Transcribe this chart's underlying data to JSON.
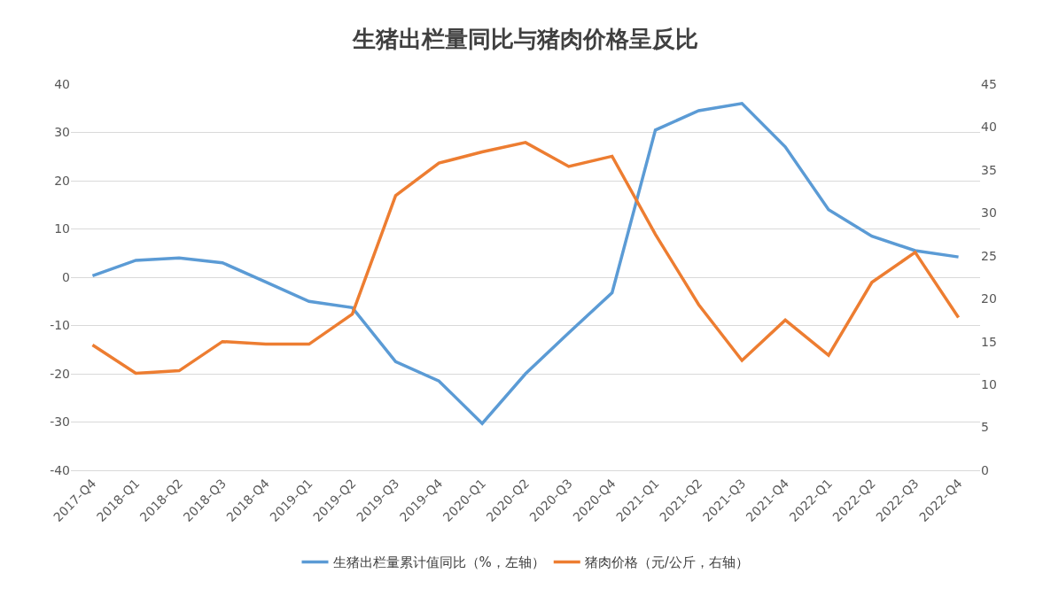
{
  "chart_data": {
    "type": "line",
    "title": "生猪出栏量同比与猪肉价格呈反比",
    "categories": [
      "2017-Q4",
      "2018-Q1",
      "2018-Q2",
      "2018-Q3",
      "2018-Q4",
      "2019-Q1",
      "2019-Q2",
      "2019-Q3",
      "2019-Q4",
      "2020-Q1",
      "2020-Q2",
      "2020-Q3",
      "2020-Q4",
      "2021-Q1",
      "2021-Q2",
      "2021-Q3",
      "2021-Q4",
      "2022-Q1",
      "2022-Q2",
      "2022-Q3",
      "2022-Q4"
    ],
    "series": [
      {
        "name": "生猪出栏量累计值同比（%，左轴）",
        "color": "#5b9bd5",
        "values": [
          0.3,
          3.5,
          4,
          3,
          -1,
          -5,
          -6.3,
          -17.5,
          -21.5,
          -30.3,
          -20,
          -11.5,
          -3.2,
          30.5,
          34.5,
          36,
          27,
          14,
          8.5,
          5.5,
          4.2
        ]
      },
      {
        "name": "猪肉价格（元/公斤，右轴）",
        "color": "#ed7d31",
        "axis": "y2",
        "values": [
          14.6,
          11.3,
          11.6,
          15,
          14.7,
          14.7,
          18.2,
          32,
          35.8,
          37.1,
          38.2,
          35.4,
          36.6,
          27.5,
          19.3,
          12.8,
          17.5,
          13.4,
          21.9,
          25.4,
          17.8
        ]
      }
    ],
    "ylim": [
      -40,
      40
    ],
    "yticks": [
      -40,
      -30,
      -20,
      -10,
      0,
      10,
      20,
      30,
      40
    ],
    "y2lim": [
      0,
      45
    ],
    "y2ticks": [
      0,
      5,
      10,
      15,
      20,
      25,
      30,
      35,
      40,
      45
    ],
    "grid": "y",
    "legend": "bottom",
    "marker": "none",
    "line_style": "solid"
  }
}
